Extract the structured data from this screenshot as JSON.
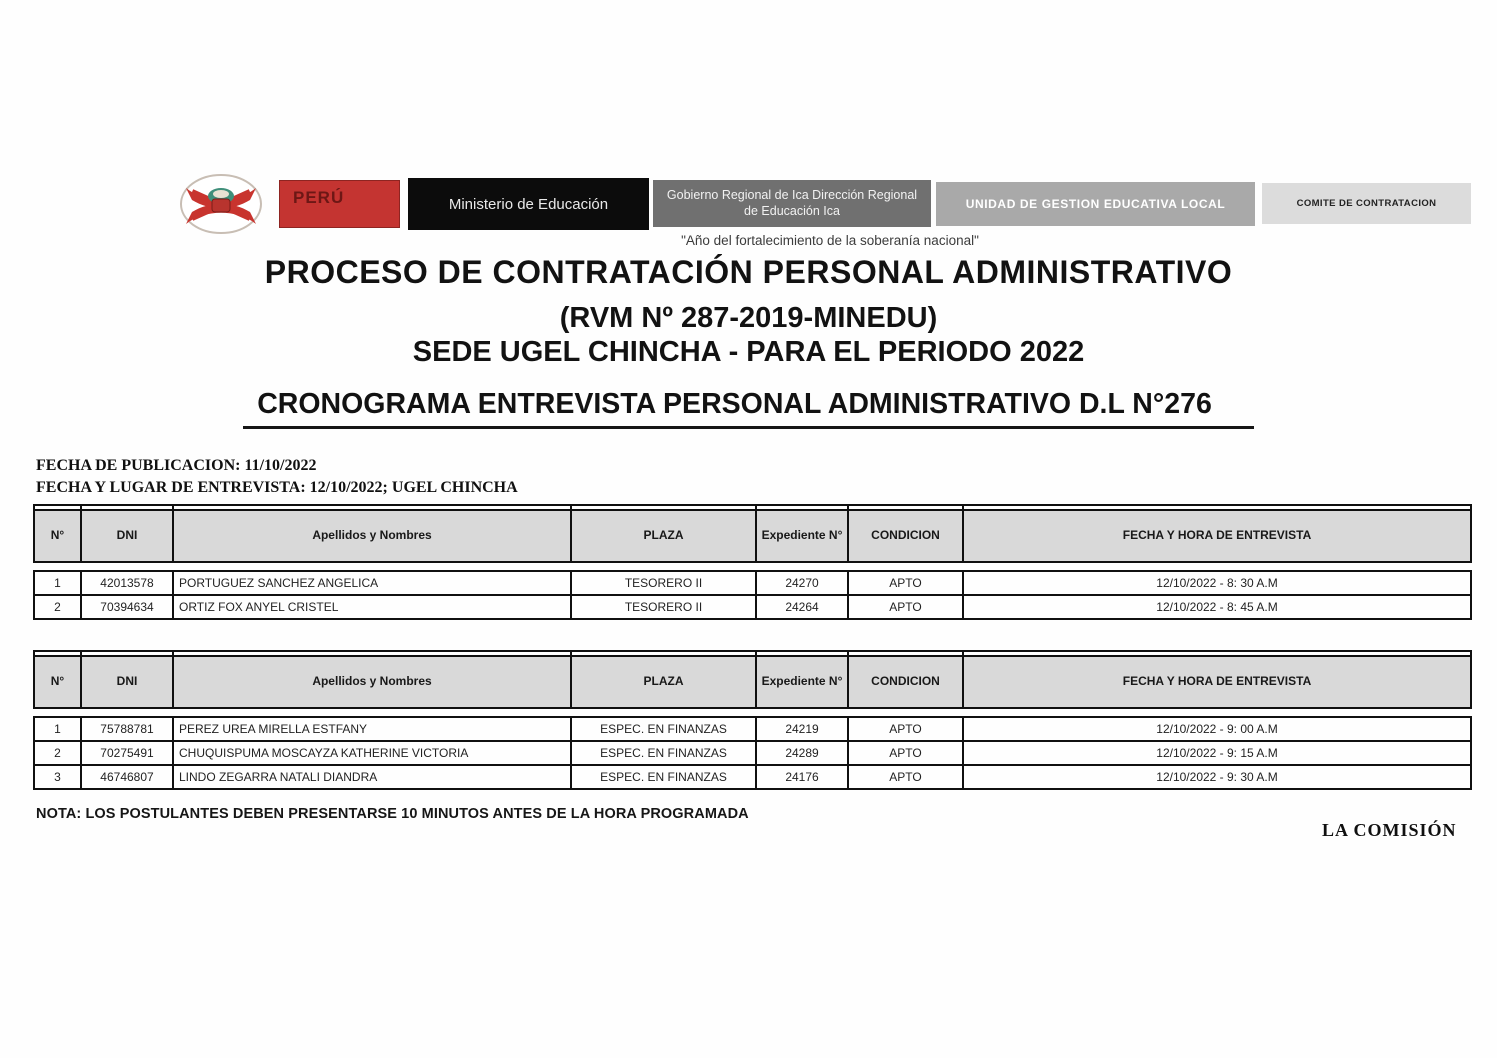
{
  "header": {
    "logo": "peru-coat-of-arms",
    "banners": [
      {
        "id": "peru",
        "label": "PERÚ",
        "bg": "#c43431",
        "fg": "#6d1715"
      },
      {
        "id": "minedu",
        "label": "Ministerio de Educación",
        "bg": "#0c0c0c",
        "fg": "#e9e9e9"
      },
      {
        "id": "gob",
        "label": "Gobierno Regional de Ica Dirección Regional de Educación Ica",
        "bg": "#707070",
        "fg": "#f2f2f2"
      },
      {
        "id": "ugel",
        "label": "UNIDAD DE GESTION EDUCATIVA LOCAL",
        "bg": "#a9a9a9",
        "fg": "#ffffff"
      },
      {
        "id": "comite",
        "label": "COMITE DE CONTRATACION",
        "bg": "#dcdcdc",
        "fg": "#232323"
      }
    ],
    "motto": "\"Año del fortalecimiento de la soberanía nacional\""
  },
  "titles": {
    "line1": "PROCESO DE CONTRATACIÓN PERSONAL ADMINISTRATIVO",
    "line2": "(RVM Nº 287-2019-MINEDU)",
    "line3": "SEDE UGEL CHINCHA - PARA EL PERIODO 2022",
    "line4": "CRONOGRAMA ENTREVISTA PERSONAL ADMINISTRATIVO D.L N°276"
  },
  "meta": {
    "publication": "FECHA DE PUBLICACION: 11/10/2022",
    "interview": "FECHA Y LUGAR DE ENTREVISTA: 12/10/2022; UGEL CHINCHA"
  },
  "tables": [
    {
      "columns": [
        "N°",
        "DNI",
        "Apellidos y Nombres",
        "PLAZA",
        "Expediente N°",
        "CONDICION",
        "FECHA Y HORA DE ENTREVISTA"
      ],
      "rows": [
        [
          "1",
          "42013578",
          "PORTUGUEZ SANCHEZ ANGELICA",
          "TESORERO II",
          "24270",
          "APTO",
          "12/10/2022 - 8: 30 A.M"
        ],
        [
          "2",
          "70394634",
          "ORTIZ FOX ANYEL CRISTEL",
          "TESORERO II",
          "24264",
          "APTO",
          "12/10/2022 - 8: 45 A.M"
        ]
      ]
    },
    {
      "columns": [
        "N°",
        "DNI",
        "Apellidos y Nombres",
        "PLAZA",
        "Expediente N°",
        "CONDICION",
        "FECHA Y HORA DE ENTREVISTA"
      ],
      "rows": [
        [
          "1",
          "75788781",
          "PEREZ UREA MIRELLA ESTFANY",
          "ESPEC. EN FINANZAS",
          "24219",
          "APTO",
          "12/10/2022 - 9: 00 A.M"
        ],
        [
          "2",
          "70275491",
          "CHUQUISPUMA MOSCAYZA KATHERINE VICTORIA",
          "ESPEC. EN FINANZAS",
          "24289",
          "APTO",
          "12/10/2022 - 9: 15 A.M"
        ],
        [
          "3",
          "46746807",
          "LINDO ZEGARRA NATALI DIANDRA",
          "ESPEC. EN FINANZAS",
          "24176",
          "APTO",
          "12/10/2022 - 9: 30 A.M"
        ]
      ]
    }
  ],
  "note": "NOTA: LOS POSTULANTES DEBEN PRESENTARSE 10 MINUTOS ANTES DE LA HORA PROGRAMADA",
  "signature": "LA COMISIÓN"
}
